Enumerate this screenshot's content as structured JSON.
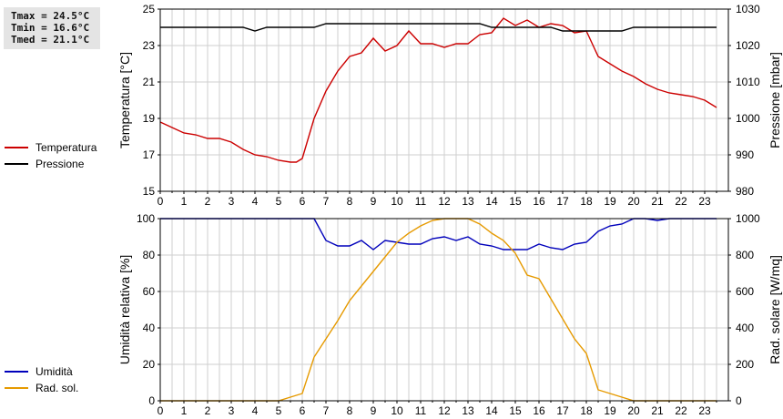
{
  "stats": {
    "tmax": "Tmax = 24.5°C",
    "tmin": "Tmin = 16.6°C",
    "tmed": "Tmed = 21.1°C"
  },
  "legend_top": [
    {
      "label": "Temperatura",
      "color": "#cc0000"
    },
    {
      "label": "Pressione",
      "color": "#000000"
    }
  ],
  "legend_bottom": [
    {
      "label": "Umidità",
      "color": "#0000bb"
    },
    {
      "label": "Rad. sol.",
      "color": "#e69a00"
    }
  ],
  "chart_data": [
    {
      "type": "line",
      "x_ticks": [
        "0",
        "1",
        "2",
        "3",
        "4",
        "5",
        "6",
        "7",
        "8",
        "9",
        "10",
        "11",
        "12",
        "13",
        "14",
        "15",
        "16",
        "17",
        "18",
        "19",
        "20",
        "21",
        "22",
        "23"
      ],
      "x_range": [
        0,
        24
      ],
      "ylabel": "Temperatura [°C]",
      "ylim": [
        15,
        25
      ],
      "y_ticks": [
        15,
        17,
        19,
        21,
        23,
        25
      ],
      "ylabel_right": "Pressione [mbar]",
      "ylim_right": [
        980,
        1030
      ],
      "y_ticks_right": [
        980,
        990,
        1000,
        1010,
        1020,
        1030
      ],
      "grid": true,
      "series": [
        {
          "name": "Temperatura",
          "axis": "left",
          "color": "#cc0000",
          "x": [
            0,
            0.5,
            1,
            1.5,
            2,
            2.5,
            3,
            3.5,
            4,
            4.5,
            5,
            5.5,
            5.75,
            6,
            6.5,
            7,
            7.5,
            8,
            8.5,
            9,
            9.5,
            10,
            10.5,
            11,
            11.5,
            12,
            12.5,
            13,
            13.5,
            14,
            14.5,
            15,
            15.5,
            16,
            16.5,
            17,
            17.5,
            18,
            18.5,
            19,
            19.5,
            20,
            20.5,
            21,
            21.5,
            22,
            22.5,
            23,
            23.5
          ],
          "y": [
            18.8,
            18.5,
            18.2,
            18.1,
            17.9,
            17.9,
            17.7,
            17.3,
            17.0,
            16.9,
            16.7,
            16.6,
            16.6,
            16.8,
            19.0,
            20.5,
            21.6,
            22.4,
            22.6,
            23.4,
            22.7,
            23.0,
            23.8,
            23.1,
            23.1,
            22.9,
            23.1,
            23.1,
            23.6,
            23.7,
            24.5,
            24.1,
            24.4,
            24.0,
            24.2,
            24.1,
            23.7,
            23.8,
            22.4,
            22.0,
            21.6,
            21.3,
            20.9,
            20.6,
            20.4,
            20.3,
            20.2,
            20.0,
            19.6
          ]
        },
        {
          "name": "Pressione",
          "axis": "right",
          "color": "#000000",
          "x": [
            0,
            3.5,
            4,
            4.5,
            6.5,
            7,
            13.5,
            14,
            16.5,
            17,
            19.5,
            20,
            23.5
          ],
          "y": [
            1025,
            1025,
            1024,
            1025,
            1025,
            1026,
            1026,
            1025,
            1025,
            1024,
            1024,
            1025,
            1025
          ]
        }
      ]
    },
    {
      "type": "line",
      "x_ticks": [
        "0",
        "1",
        "2",
        "3",
        "4",
        "5",
        "6",
        "7",
        "8",
        "9",
        "10",
        "11",
        "12",
        "13",
        "14",
        "15",
        "16",
        "17",
        "18",
        "19",
        "20",
        "21",
        "22",
        "23"
      ],
      "x_range": [
        0,
        24
      ],
      "ylabel": "Umidità relativa [%]",
      "ylim": [
        0,
        100
      ],
      "y_ticks": [
        0,
        20,
        40,
        60,
        80,
        100
      ],
      "ylabel_right": "Rad. solare [W/mq]",
      "ylim_right": [
        0,
        1000
      ],
      "y_ticks_right": [
        0,
        200,
        400,
        600,
        800,
        1000
      ],
      "grid": true,
      "series": [
        {
          "name": "Umidità",
          "axis": "left",
          "color": "#0000bb",
          "x": [
            0,
            6.5,
            7,
            7.5,
            8,
            8.5,
            9,
            9.5,
            10,
            10.5,
            11,
            11.5,
            12,
            12.5,
            13,
            13.5,
            14,
            14.5,
            15,
            15.5,
            16,
            16.5,
            17,
            17.5,
            18,
            18.5,
            19,
            19.5,
            20,
            20.5,
            21,
            21.5,
            23.5
          ],
          "y": [
            100,
            100,
            88,
            85,
            85,
            88,
            83,
            88,
            87,
            86,
            86,
            89,
            90,
            88,
            90,
            86,
            85,
            83,
            83,
            83,
            86,
            84,
            83,
            86,
            87,
            93,
            96,
            97,
            100,
            100,
            99,
            100,
            100
          ]
        },
        {
          "name": "Rad. sol.",
          "axis": "right",
          "color": "#e69a00",
          "x": [
            0,
            5,
            5.5,
            6,
            6.5,
            7,
            7.5,
            8,
            8.5,
            9,
            9.5,
            10,
            10.5,
            11,
            11.5,
            12,
            12.5,
            13,
            13.5,
            14,
            14.5,
            15,
            15.5,
            16,
            16.5,
            17,
            17.5,
            18,
            18.5,
            19,
            19.5,
            20,
            23.5
          ],
          "y": [
            0,
            0,
            20,
            40,
            240,
            340,
            440,
            550,
            630,
            710,
            790,
            870,
            920,
            960,
            990,
            1000,
            1000,
            1000,
            970,
            920,
            880,
            810,
            690,
            670,
            560,
            450,
            340,
            260,
            60,
            40,
            20,
            0,
            0
          ]
        }
      ]
    }
  ]
}
